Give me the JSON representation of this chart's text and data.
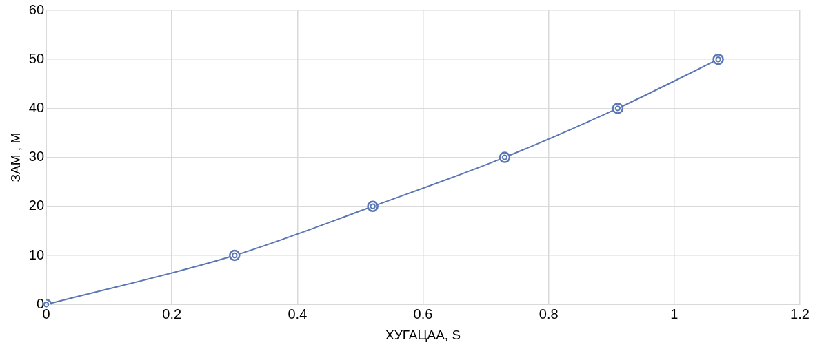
{
  "chart_data": {
    "type": "line",
    "xlabel": "ХУГАЦАА, S",
    "ylabel": "ЗАМ , M",
    "x": [
      0,
      0.3,
      0.52,
      0.73,
      0.91,
      1.07
    ],
    "series": [
      {
        "color": "#5a76b4",
        "values": [
          0,
          10,
          20,
          30,
          40,
          50
        ]
      }
    ],
    "xlim": [
      0,
      1.2
    ],
    "xticks": [
      0,
      0.2,
      0.4,
      0.6,
      0.8,
      1,
      1.2
    ],
    "ylim": [
      0,
      60
    ],
    "yticks": [
      0,
      10,
      20,
      30,
      40,
      50,
      60
    ],
    "grid": true,
    "marker": "circle",
    "line_style": "solid"
  }
}
